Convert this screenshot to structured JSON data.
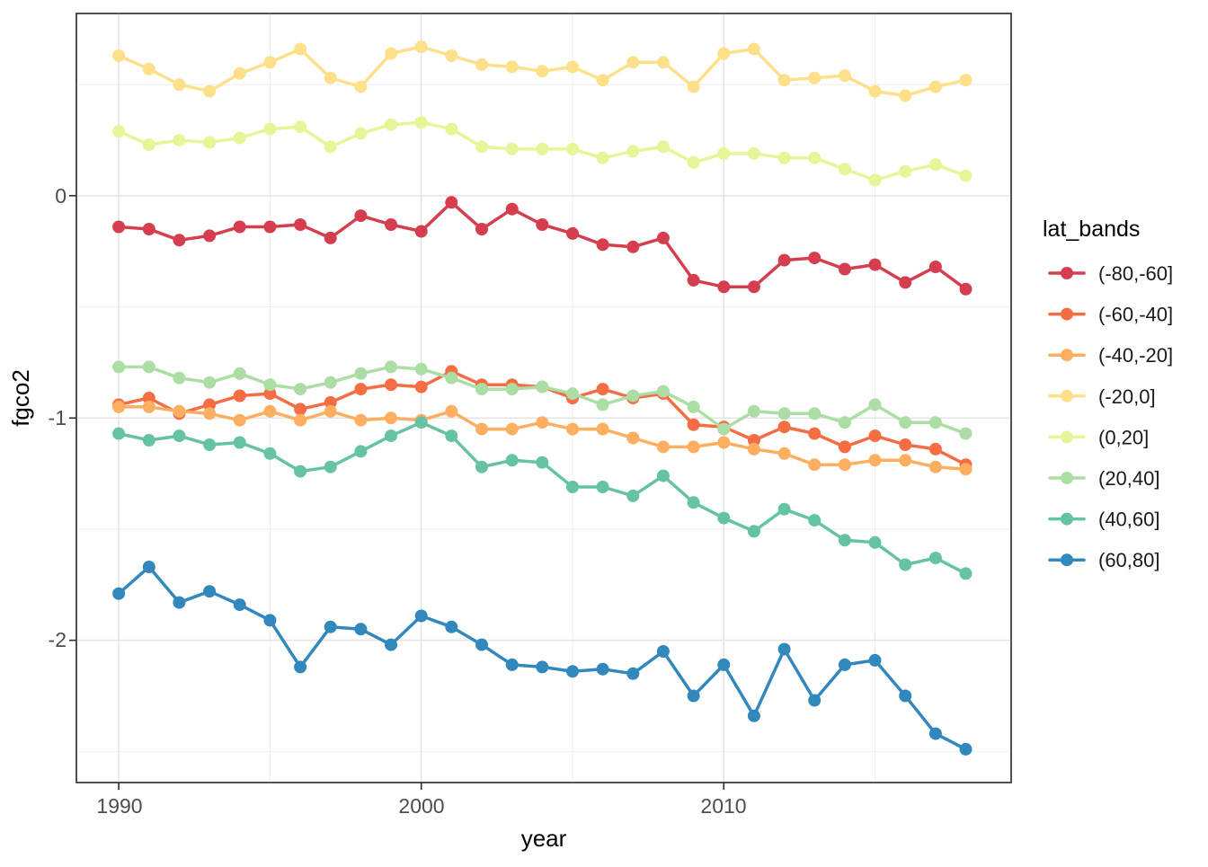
{
  "chart_data": {
    "type": "line",
    "title": "",
    "xlabel": "year",
    "ylabel": "fgco2",
    "legend_title": "lat_bands",
    "legend_position": "right",
    "grid": true,
    "xlim": [
      1988.6,
      2019.5
    ],
    "ylim": [
      -2.64,
      0.82
    ],
    "x_ticks": [
      1990,
      2000,
      2010
    ],
    "x_tick_labels": [
      "1990",
      "2000",
      "2010"
    ],
    "x_minor_ticks": [
      1995,
      2005,
      2015
    ],
    "y_ticks": [
      0,
      -1,
      -2
    ],
    "y_tick_labels": [
      "0",
      "-1",
      "-2"
    ],
    "y_minor_ticks": [
      0.5,
      -0.5,
      -1.5,
      -2.5
    ],
    "x": [
      1990,
      1991,
      1992,
      1993,
      1994,
      1995,
      1996,
      1997,
      1998,
      1999,
      2000,
      2001,
      2002,
      2003,
      2004,
      2005,
      2006,
      2007,
      2008,
      2009,
      2010,
      2011,
      2012,
      2013,
      2014,
      2015,
      2016,
      2017,
      2018
    ],
    "series": [
      {
        "label": "(-80,-60]",
        "color": "#d53e4f",
        "values": [
          -0.14,
          -0.15,
          -0.2,
          -0.18,
          -0.14,
          -0.14,
          -0.13,
          -0.19,
          -0.09,
          -0.13,
          -0.16,
          -0.03,
          -0.15,
          -0.06,
          -0.13,
          -0.17,
          -0.22,
          -0.23,
          -0.19,
          -0.38,
          -0.41,
          -0.41,
          -0.29,
          -0.28,
          -0.33,
          -0.31,
          -0.39,
          -0.32,
          -0.42
        ]
      },
      {
        "label": "(-60,-40]",
        "color": "#f46d43",
        "values": [
          -0.94,
          -0.91,
          -0.98,
          -0.94,
          -0.9,
          -0.89,
          -0.96,
          -0.93,
          -0.87,
          -0.85,
          -0.86,
          -0.79,
          -0.85,
          -0.85,
          -0.86,
          -0.91,
          -0.87,
          -0.91,
          -0.89,
          -1.03,
          -1.04,
          -1.1,
          -1.04,
          -1.07,
          -1.13,
          -1.08,
          -1.12,
          -1.14,
          -1.21
        ]
      },
      {
        "label": "(-40,-20]",
        "color": "#fdae61",
        "values": [
          -0.95,
          -0.95,
          -0.97,
          -0.98,
          -1.01,
          -0.97,
          -1.01,
          -0.97,
          -1.01,
          -1.0,
          -1.01,
          -0.97,
          -1.05,
          -1.05,
          -1.02,
          -1.05,
          -1.05,
          -1.09,
          -1.13,
          -1.13,
          -1.11,
          -1.14,
          -1.16,
          -1.21,
          -1.21,
          -1.19,
          -1.19,
          -1.22,
          -1.23
        ]
      },
      {
        "label": "(-20,0]",
        "color": "#fee08b",
        "values": [
          0.63,
          0.57,
          0.5,
          0.47,
          0.55,
          0.6,
          0.66,
          0.53,
          0.49,
          0.64,
          0.67,
          0.63,
          0.59,
          0.58,
          0.56,
          0.58,
          0.52,
          0.6,
          0.6,
          0.49,
          0.64,
          0.66,
          0.52,
          0.53,
          0.54,
          0.47,
          0.45,
          0.49,
          0.52
        ]
      },
      {
        "label": "(0,20]",
        "color": "#e6f598",
        "values": [
          0.29,
          0.23,
          0.25,
          0.24,
          0.26,
          0.3,
          0.31,
          0.22,
          0.28,
          0.32,
          0.33,
          0.3,
          0.22,
          0.21,
          0.21,
          0.21,
          0.17,
          0.2,
          0.22,
          0.15,
          0.19,
          0.19,
          0.17,
          0.17,
          0.12,
          0.07,
          0.11,
          0.14,
          0.09
        ]
      },
      {
        "label": "(20,40]",
        "color": "#abdda4",
        "values": [
          -0.77,
          -0.77,
          -0.82,
          -0.84,
          -0.8,
          -0.85,
          -0.87,
          -0.84,
          -0.8,
          -0.77,
          -0.78,
          -0.82,
          -0.87,
          -0.87,
          -0.86,
          -0.89,
          -0.94,
          -0.9,
          -0.88,
          -0.95,
          -1.05,
          -0.97,
          -0.98,
          -0.98,
          -1.02,
          -0.94,
          -1.02,
          -1.02,
          -1.07
        ]
      },
      {
        "label": "(40,60]",
        "color": "#66c2a5",
        "values": [
          -1.07,
          -1.1,
          -1.08,
          -1.12,
          -1.11,
          -1.16,
          -1.24,
          -1.22,
          -1.15,
          -1.08,
          -1.02,
          -1.08,
          -1.22,
          -1.19,
          -1.2,
          -1.31,
          -1.31,
          -1.35,
          -1.26,
          -1.38,
          -1.45,
          -1.51,
          -1.41,
          -1.46,
          -1.55,
          -1.56,
          -1.66,
          -1.63,
          -1.7
        ]
      },
      {
        "label": "(60,80]",
        "color": "#3288bd",
        "values": [
          -1.79,
          -1.67,
          -1.83,
          -1.78,
          -1.84,
          -1.91,
          -2.12,
          -1.94,
          -1.95,
          -2.02,
          -1.89,
          -1.94,
          -2.02,
          -2.11,
          -2.12,
          -2.14,
          -2.13,
          -2.15,
          -2.05,
          -2.25,
          -2.11,
          -2.34,
          -2.04,
          -2.27,
          -2.11,
          -2.09,
          -2.25,
          -2.42,
          -2.49
        ]
      }
    ],
    "style": {
      "panel_background": "#ffffff",
      "panel_border_color": "#2b2b2b",
      "grid_major_color": "#e4e4e4",
      "grid_minor_color": "#eeeeee",
      "tick_color": "#2b2b2b",
      "tick_label_color": "#4d4d4d",
      "line_width": 3.5,
      "point_radius": 7
    }
  }
}
